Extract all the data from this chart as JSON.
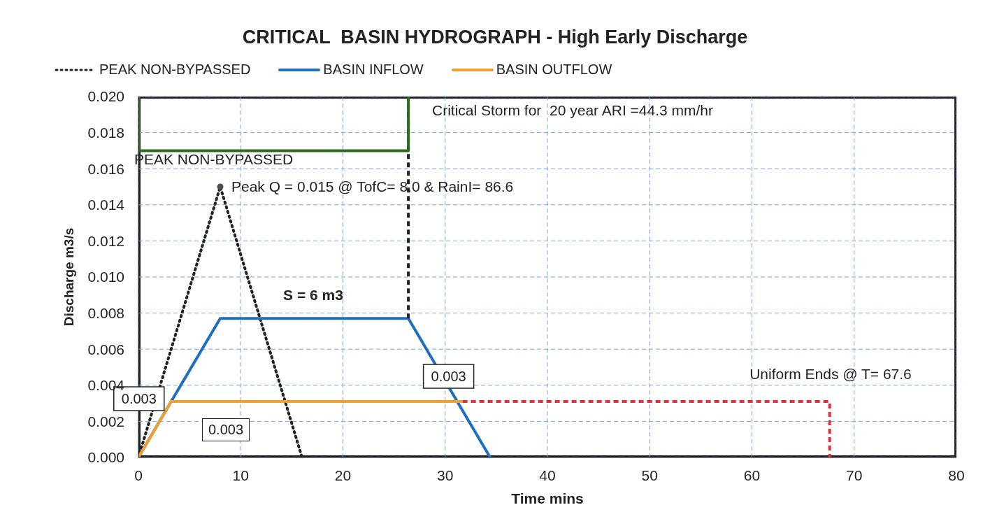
{
  "chart_data": {
    "type": "line",
    "title": "CRITICAL  BASIN HYDROGRAPH - High Early Discharge",
    "xlabel": "Time mins",
    "ylabel": "Discharge m3/s",
    "xlim": [
      0,
      80
    ],
    "xticks": [
      0,
      10,
      20,
      30,
      40,
      50,
      60,
      70,
      80
    ],
    "ylim": [
      0,
      0.02
    ],
    "yticks": [
      {
        "value": 0,
        "label": "0.000"
      },
      {
        "value": 0.002,
        "label": "0.002"
      },
      {
        "value": 0.004,
        "label": "0.004"
      },
      {
        "value": 0.006,
        "label": "0.006"
      },
      {
        "value": 0.008,
        "label": "0.008"
      },
      {
        "value": 0.01,
        "label": "0.010"
      },
      {
        "value": 0.012,
        "label": "0.012"
      },
      {
        "value": 0.014,
        "label": "0.014"
      },
      {
        "value": 0.016,
        "label": "0.016"
      },
      {
        "value": 0.018,
        "label": "0.018"
      },
      {
        "value": 0.02,
        "label": "0.020"
      }
    ],
    "grid": true,
    "legend": "top",
    "series": [
      {
        "name": "PEAK NON-BYPASSED",
        "color": "#222222",
        "line_style": "dotted",
        "x": [
          0,
          8,
          16
        ],
        "values": [
          0,
          0.015,
          0
        ]
      },
      {
        "name": "BASIN INFLOW",
        "color": "#1f6fc0",
        "line_style": "solid",
        "x": [
          0,
          3.2,
          8,
          26.4,
          34.4
        ],
        "values": [
          0,
          0.0031,
          0.0077,
          0.0077,
          0
        ]
      },
      {
        "name": "BASIN OUTFLOW",
        "color": "#f0a030",
        "line_style": "solid",
        "x": [
          0,
          3.2,
          31.7
        ],
        "values": [
          0,
          0.0031,
          0.0031
        ]
      },
      {
        "color": "#e0303a",
        "line_style": "dashed",
        "x": [
          31.7,
          67.6,
          67.6
        ],
        "values": [
          0.0031,
          0.0031,
          0
        ]
      },
      {
        "color": "#222222",
        "line_style": "dashed",
        "x": [
          26.4,
          26.4
        ],
        "values": [
          0.0077,
          0.02
        ]
      },
      {
        "color": "#2e6b1f",
        "line_style": "solid",
        "x": [
          0,
          0,
          26.4,
          26.4
        ],
        "values": [
          0.02,
          0.017,
          0.017,
          0.02
        ]
      },
      {
        "type": "scatter",
        "color": "#4a4f55",
        "marker": "circle",
        "x": [
          8
        ],
        "values": [
          0.015
        ]
      }
    ],
    "annotations": [
      "Critical Storm for  20 year ARI =44.3 mm/hr",
      "PEAK NON-BYPASSED",
      {
        "text": "Peak Q = 0.015 @ TofC= 8.0 & RainI= 86.6",
        "x": 8,
        "y": 0.015
      },
      "S = 6 m3",
      {
        "text": "0.003",
        "x": 3.2,
        "y": 0.0031
      },
      "0.003",
      {
        "text": "0.003",
        "x": 31.7,
        "y": 0.0031
      },
      "Uniform Ends @ T= 67.6"
    ]
  }
}
